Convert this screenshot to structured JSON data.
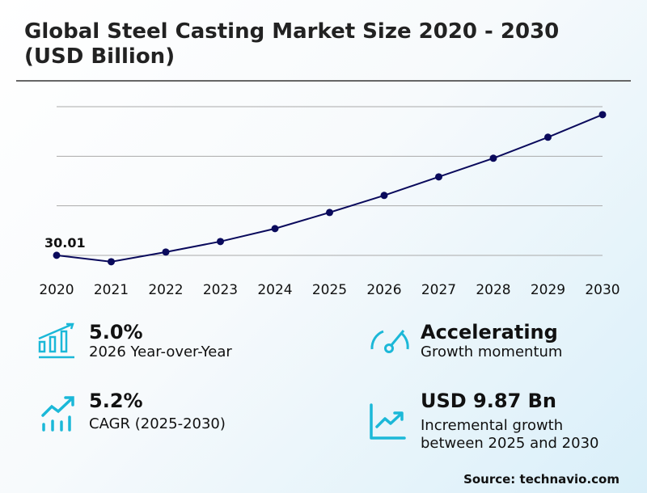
{
  "title": "Global Steel Casting Market Size 2020 - 2030 (USD Billion)",
  "chart_data": {
    "type": "line",
    "title": "Global Steel Casting Market Size 2020 - 2030 (USD Billion)",
    "categories": [
      "2020",
      "2021",
      "2022",
      "2023",
      "2024",
      "2025",
      "2026",
      "2027",
      "2028",
      "2029",
      "2030"
    ],
    "values": [
      30.01,
      29.36,
      30.34,
      31.4,
      32.7,
      34.33,
      36.05,
      37.92,
      39.8,
      41.92,
      44.2
    ],
    "data_labels": [
      {
        "index": 0,
        "text": "30.01"
      }
    ],
    "ylim": [
      30,
      45
    ],
    "gridlines": [
      30,
      35,
      40,
      45
    ],
    "grid": true,
    "line_color": "#0a0a5c"
  },
  "stats": [
    {
      "value": "5.0%",
      "label": "2026 Year-over-Year",
      "icon": "bar-chart-growth-icon"
    },
    {
      "value": "Accelerating",
      "label": "Growth momentum",
      "icon": "speedometer-icon"
    },
    {
      "value": "5.2%",
      "label": "CAGR (2025-2030)",
      "icon": "trend-up-bars-icon"
    },
    {
      "value": "USD 9.87 Bn",
      "label_lines": [
        "Incremental growth",
        "between 2025 and 2030"
      ],
      "icon": "line-chart-up-icon"
    }
  ],
  "icon_color": "#1bb8d8",
  "source": "Source: technavio.com"
}
